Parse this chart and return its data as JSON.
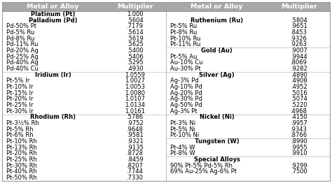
{
  "header_bg": "#a8a8a8",
  "header_text_color": "#ffffff",
  "header_font_size": 6.8,
  "row_font_size": 6.0,
  "col1_header": "Metal or Alloy",
  "col2_header": "Multiplier",
  "sep_color": "#bbbbbb",
  "thick_sep_color": "#999999",
  "left_data": [
    {
      "name": "Platinum (Pt)",
      "value": "1.000",
      "bold": true,
      "sep_after": false
    },
    {
      "name": "Palladium (Pd)",
      "value": ".5604",
      "bold": true,
      "sep_after": false
    },
    {
      "name": "Pd-50% Pt",
      "value": ".7179",
      "bold": false,
      "sep_after": false
    },
    {
      "name": "Pd-5% Ru",
      "value": ".5614",
      "bold": false,
      "sep_after": false
    },
    {
      "name": "Pd-8% Ru",
      "value": ".5619",
      "bold": false,
      "sep_after": false
    },
    {
      "name": "Pd-11% Ru",
      "value": ".5625",
      "bold": false,
      "sep_after": false
    },
    {
      "name": "Pd-20% Ag",
      "value": ".5400",
      "bold": false,
      "sep_after": false
    },
    {
      "name": "Pd-25% Ag",
      "value": ".5406",
      "bold": false,
      "sep_after": false
    },
    {
      "name": "Pd-40% Ag",
      "value": ".5295",
      "bold": false,
      "sep_after": false
    },
    {
      "name": "Pd-40% Cu",
      "value": ".4930",
      "bold": false,
      "sep_after": true
    },
    {
      "name": "Iridium (Ir)",
      "value": "1.0559",
      "bold": true,
      "sep_after": false
    },
    {
      "name": "Pt-5% Ir",
      "value": "1.0027",
      "bold": false,
      "sep_after": false
    },
    {
      "name": "Pt-10% Ir",
      "value": "1.0053",
      "bold": false,
      "sep_after": false
    },
    {
      "name": "Pt-15% Ir",
      "value": "1.0080",
      "bold": false,
      "sep_after": false
    },
    {
      "name": "Pt-20% Ir",
      "value": "1.0107",
      "bold": false,
      "sep_after": false
    },
    {
      "name": "Pt-25% Ir",
      "value": "1.0134",
      "bold": false,
      "sep_after": false
    },
    {
      "name": "Pt-30% Ir",
      "value": "1.0161",
      "bold": false,
      "sep_after": true
    },
    {
      "name": "Rhodium (Rh)",
      "value": ".5786",
      "bold": true,
      "sep_after": false
    },
    {
      "name": "Pt-3½% Rh",
      "value": ".9752",
      "bold": false,
      "sep_after": false
    },
    {
      "name": "Pt-5% Rh",
      "value": ".9648",
      "bold": false,
      "sep_after": false
    },
    {
      "name": "Pt-6% Rh",
      "value": ".9581",
      "bold": false,
      "sep_after": false
    },
    {
      "name": "Pt-10% Rh",
      "value": ".9321",
      "bold": false,
      "sep_after": false
    },
    {
      "name": "Pt-13% Rh",
      "value": ".9135",
      "bold": false,
      "sep_after": false
    },
    {
      "name": "Pt-20% Rh",
      "value": ".8728",
      "bold": false,
      "sep_after": false
    },
    {
      "name": "Pt-25% Rh",
      "value": ".8459",
      "bold": false,
      "sep_after": false
    },
    {
      "name": "Pt-30% Rh",
      "value": ".8207",
      "bold": false,
      "sep_after": false
    },
    {
      "name": "Pt-40% Rh",
      "value": ".7744",
      "bold": false,
      "sep_after": false
    },
    {
      "name": "Pt-50% Rh",
      "value": ".7330",
      "bold": false,
      "sep_after": false
    }
  ],
  "right_data": [
    {
      "name": "",
      "value": "",
      "bold": false,
      "sep_after": false
    },
    {
      "name": "Ruthenium (Ru)",
      "value": ".5804",
      "bold": true,
      "sep_after": false
    },
    {
      "name": "Pt-5% Ru",
      "value": ".9651",
      "bold": false,
      "sep_after": false
    },
    {
      "name": "Pt-8% Ru",
      "value": ".8453",
      "bold": false,
      "sep_after": false
    },
    {
      "name": "Pt-10% Ru",
      "value": ".9326",
      "bold": false,
      "sep_after": false
    },
    {
      "name": "Pt-11% Ru",
      "value": ".9263",
      "bold": false,
      "sep_after": true
    },
    {
      "name": "Gold (Au)",
      "value": ".9007",
      "bold": true,
      "sep_after": false
    },
    {
      "name": "Pt-5% Au",
      "value": ".9944",
      "bold": false,
      "sep_after": false
    },
    {
      "name": "Au-10% Cu",
      "value": ".8069",
      "bold": false,
      "sep_after": false
    },
    {
      "name": "Au-30% Pt",
      "value": ".9282",
      "bold": false,
      "sep_after": true
    },
    {
      "name": "Silver (Ag)",
      "value": ".4890",
      "bold": true,
      "sep_after": false
    },
    {
      "name": "Ag-3% Pd",
      "value": ".4908",
      "bold": false,
      "sep_after": false
    },
    {
      "name": "Ag-10% Pd",
      "value": ".4952",
      "bold": false,
      "sep_after": false
    },
    {
      "name": "Ag-20% Pd",
      "value": ".5016",
      "bold": false,
      "sep_after": false
    },
    {
      "name": "Ag-30% Pd",
      "value": ".5074",
      "bold": false,
      "sep_after": false
    },
    {
      "name": "Ag-50% Pd",
      "value": ".5220",
      "bold": false,
      "sep_after": false
    },
    {
      "name": "Ag-3% Pt",
      "value": ".4968",
      "bold": false,
      "sep_after": true
    },
    {
      "name": "Nickel (Ni)",
      "value": ".4150",
      "bold": true,
      "sep_after": false
    },
    {
      "name": "Pt-3% Ni",
      "value": ".9957",
      "bold": false,
      "sep_after": false
    },
    {
      "name": "Pt-5% Ni",
      "value": ".9343",
      "bold": false,
      "sep_after": false
    },
    {
      "name": "Pt-10% Ni",
      "value": ".8766",
      "bold": false,
      "sep_after": true
    },
    {
      "name": "Tungsten (W)",
      "value": ".8990",
      "bold": true,
      "sep_after": false
    },
    {
      "name": "Pt-4% W",
      "value": ".9955",
      "bold": false,
      "sep_after": false
    },
    {
      "name": "Pt-8% W",
      "value": ".9910",
      "bold": false,
      "sep_after": true
    },
    {
      "name": "Special Alloys",
      "value": "",
      "bold": true,
      "sep_after": false
    },
    {
      "name": "90% Pt-5% Pd-5% Rh",
      "value": ".9299",
      "bold": false,
      "sep_after": false
    },
    {
      "name": "69% Au-25% Ag-6% Pt",
      "value": ".7500",
      "bold": false,
      "sep_after": false
    }
  ]
}
